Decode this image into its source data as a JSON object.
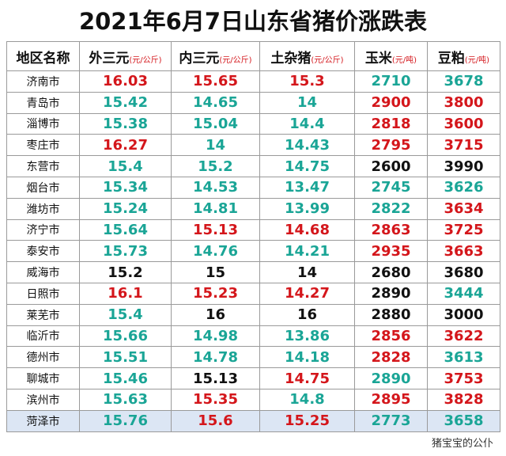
{
  "header": {
    "title": "2021年6月7日山东省猪价涨跌表"
  },
  "table": {
    "columns": [
      {
        "name": "地区名称"
      },
      {
        "name": "外三元",
        "unit": "(元/公斤)"
      },
      {
        "name": "内三元",
        "unit": "(元/公斤)"
      },
      {
        "name": "土杂猪",
        "unit": "(元/公斤)"
      },
      {
        "name": "玉米",
        "unit": "(元/吨)"
      },
      {
        "name": "豆粕",
        "unit": "(元/吨)"
      }
    ],
    "rows": [
      {
        "region": "济南市",
        "values": [
          16.03,
          15.65,
          15.3,
          2710,
          3678
        ],
        "colors": [
          "#d4161b",
          "#d4161b",
          "#d4161b",
          "#1aa596",
          "#1aa596"
        ]
      },
      {
        "region": "青岛市",
        "values": [
          15.42,
          14.65,
          14,
          2900,
          3800
        ],
        "colors": [
          "#1aa596",
          "#1aa596",
          "#1aa596",
          "#d4161b",
          "#d4161b"
        ]
      },
      {
        "region": "淄博市",
        "values": [
          15.38,
          15.04,
          14.4,
          2818,
          3600
        ],
        "colors": [
          "#1aa596",
          "#1aa596",
          "#1aa596",
          "#d4161b",
          "#d4161b"
        ]
      },
      {
        "region": "枣庄市",
        "values": [
          16.27,
          14,
          14.43,
          2795,
          3715
        ],
        "colors": [
          "#d4161b",
          "#1aa596",
          "#1aa596",
          "#d4161b",
          "#d4161b"
        ]
      },
      {
        "region": "东营市",
        "values": [
          15.4,
          15.2,
          14.75,
          2600,
          3990
        ],
        "colors": [
          "#1aa596",
          "#1aa596",
          "#1aa596",
          "#111111",
          "#111111"
        ]
      },
      {
        "region": "烟台市",
        "values": [
          15.34,
          14.53,
          13.47,
          2745,
          3626
        ],
        "colors": [
          "#1aa596",
          "#1aa596",
          "#1aa596",
          "#1aa596",
          "#1aa596"
        ]
      },
      {
        "region": "潍坊市",
        "values": [
          15.24,
          14.81,
          13.99,
          2822,
          3634
        ],
        "colors": [
          "#1aa596",
          "#1aa596",
          "#1aa596",
          "#1aa596",
          "#d4161b"
        ]
      },
      {
        "region": "济宁市",
        "values": [
          15.64,
          15.13,
          14.68,
          2863,
          3725
        ],
        "colors": [
          "#1aa596",
          "#d4161b",
          "#d4161b",
          "#d4161b",
          "#d4161b"
        ]
      },
      {
        "region": "泰安市",
        "values": [
          15.73,
          14.76,
          14.21,
          2935,
          3663
        ],
        "colors": [
          "#1aa596",
          "#1aa596",
          "#1aa596",
          "#d4161b",
          "#d4161b"
        ]
      },
      {
        "region": "威海市",
        "values": [
          15.2,
          15,
          14,
          2680,
          3680
        ],
        "colors": [
          "#111111",
          "#111111",
          "#111111",
          "#111111",
          "#111111"
        ]
      },
      {
        "region": "日照市",
        "values": [
          16.1,
          15.23,
          14.27,
          2890,
          3444
        ],
        "colors": [
          "#d4161b",
          "#d4161b",
          "#d4161b",
          "#111111",
          "#1aa596"
        ]
      },
      {
        "region": "莱芜市",
        "values": [
          15.4,
          16,
          16,
          2880,
          3000
        ],
        "colors": [
          "#1aa596",
          "#111111",
          "#111111",
          "#111111",
          "#111111"
        ]
      },
      {
        "region": "临沂市",
        "values": [
          15.66,
          14.98,
          13.86,
          2856,
          3622
        ],
        "colors": [
          "#1aa596",
          "#1aa596",
          "#1aa596",
          "#d4161b",
          "#d4161b"
        ]
      },
      {
        "region": "德州市",
        "values": [
          15.51,
          14.78,
          14.18,
          2828,
          3613
        ],
        "colors": [
          "#1aa596",
          "#1aa596",
          "#1aa596",
          "#d4161b",
          "#1aa596"
        ]
      },
      {
        "region": "聊城市",
        "values": [
          15.46,
          15.13,
          14.75,
          2890,
          3753
        ],
        "colors": [
          "#1aa596",
          "#111111",
          "#d4161b",
          "#1aa596",
          "#d4161b"
        ]
      },
      {
        "region": "滨州市",
        "values": [
          15.63,
          15.35,
          14.8,
          2895,
          3828
        ],
        "colors": [
          "#1aa596",
          "#d4161b",
          "#1aa596",
          "#d4161b",
          "#d4161b"
        ]
      },
      {
        "region": "菏泽市",
        "values": [
          15.76,
          15.6,
          15.25,
          2773,
          3658
        ],
        "colors": [
          "#1aa596",
          "#d4161b",
          "#d4161b",
          "#1aa596",
          "#1aa596"
        ],
        "background": "#dce6f4"
      }
    ]
  },
  "footer": {
    "watermark": "猪宝宝的公仆"
  }
}
